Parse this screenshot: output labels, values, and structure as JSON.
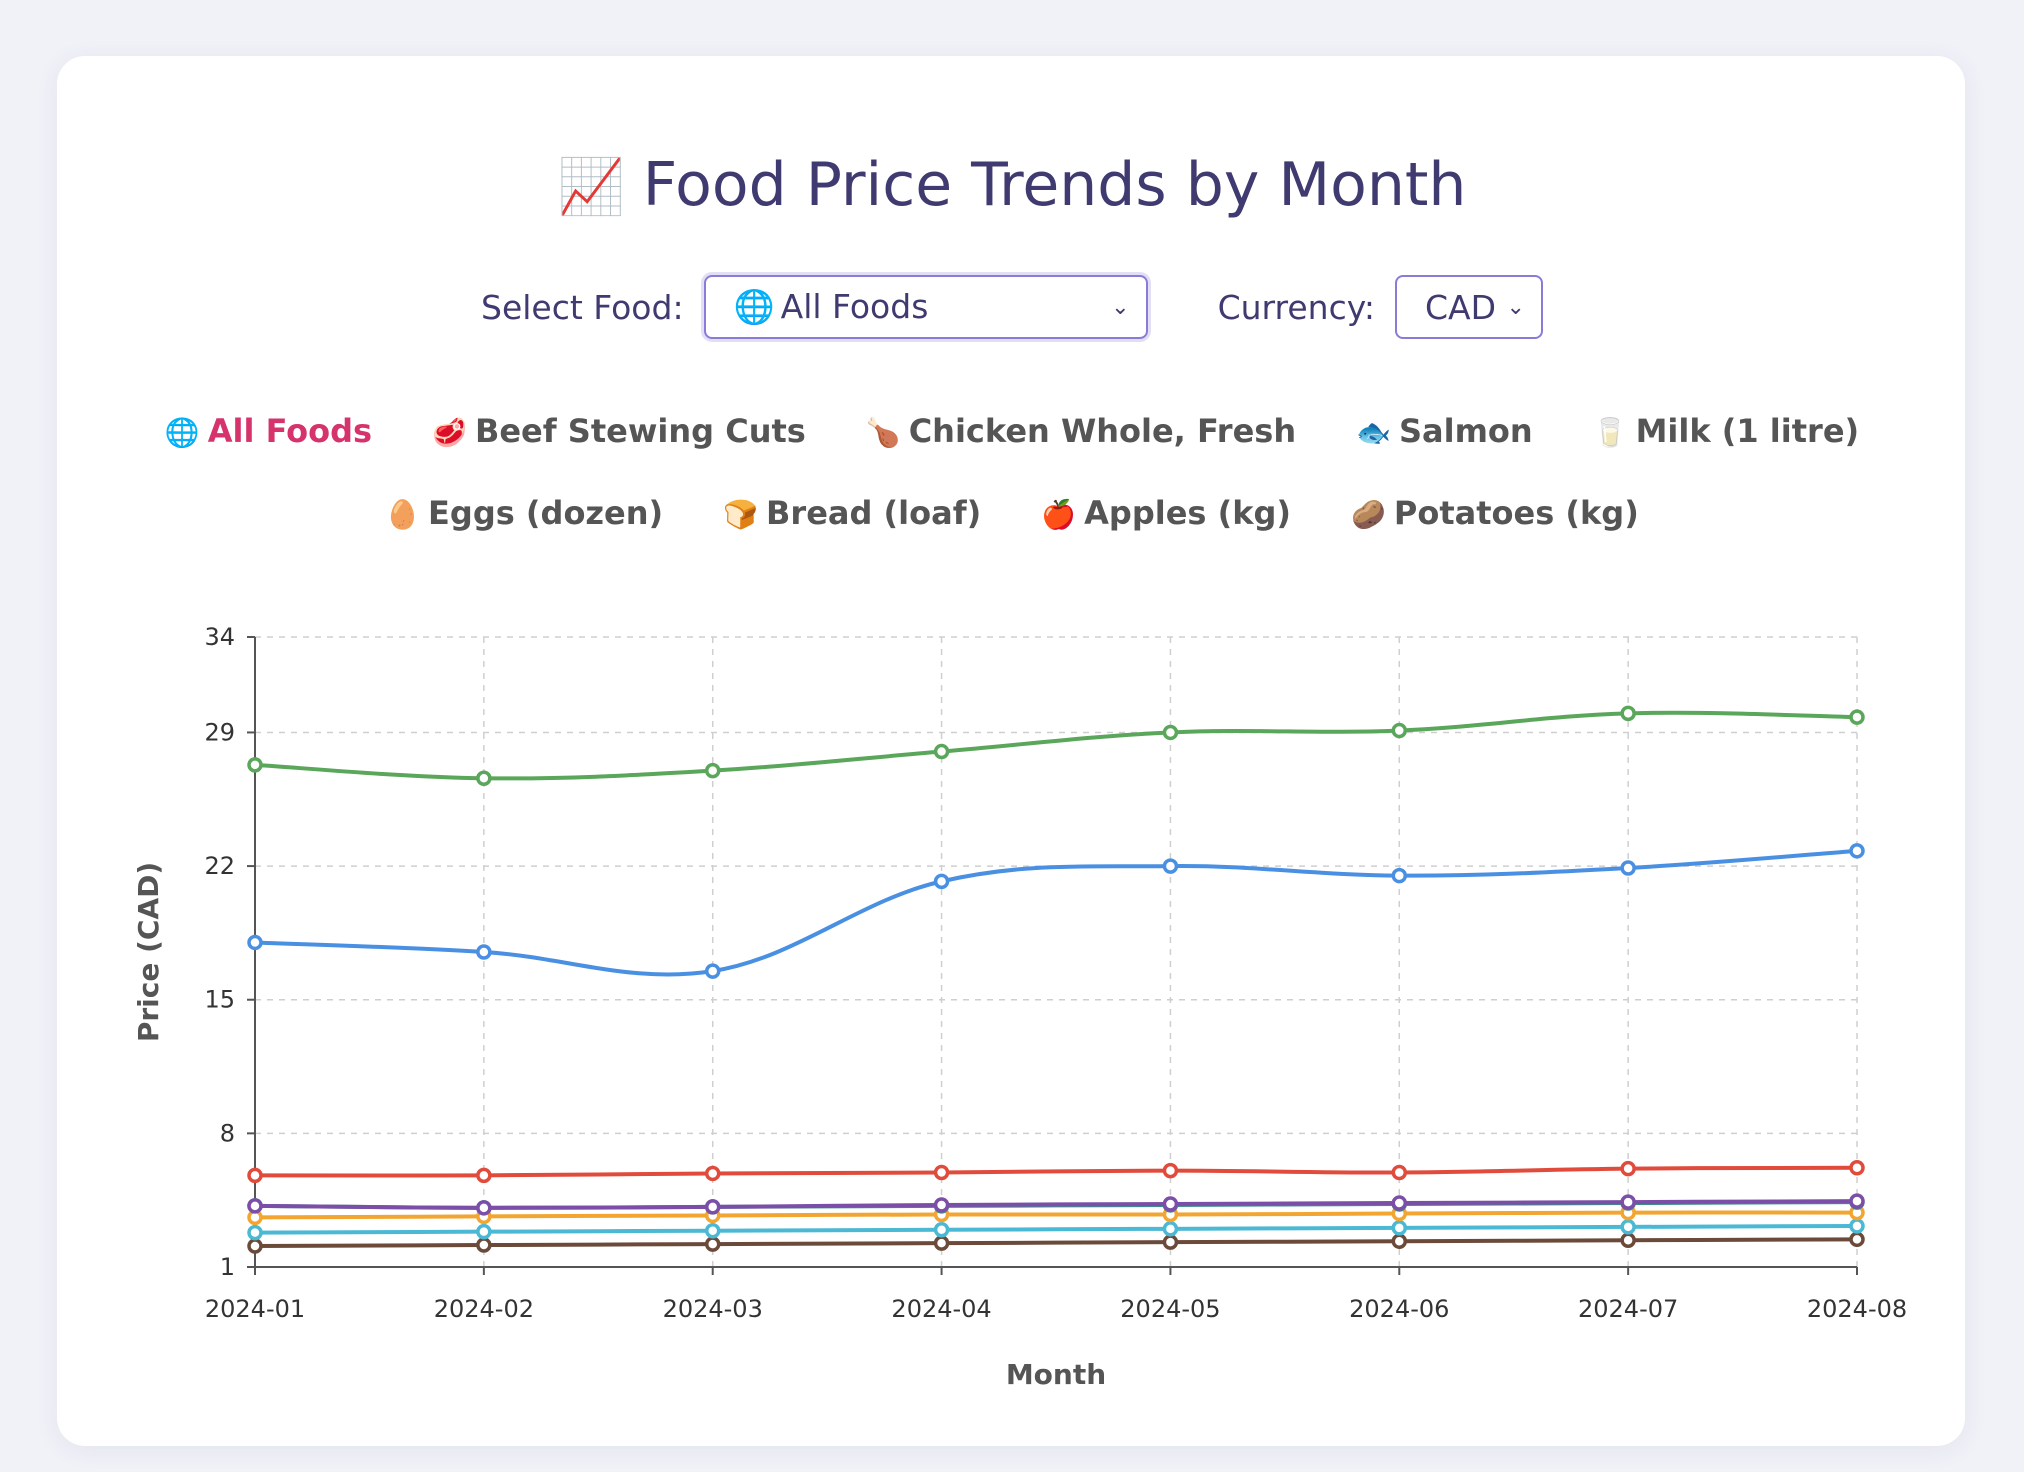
{
  "title": "Food Price Trends by Month",
  "title_icon": "chart-increasing-icon",
  "controls": {
    "food_label": "Select Food:",
    "food_value": "All Foods",
    "currency_label": "Currency:",
    "currency_value": "CAD"
  },
  "legend": [
    {
      "label": "All Foods",
      "icon": "globe-icon",
      "glyph": "🌐",
      "active": true
    },
    {
      "label": "Beef Stewing Cuts",
      "icon": "meat-icon",
      "glyph": "🥩"
    },
    {
      "label": "Chicken Whole, Fresh",
      "icon": "drumstick-icon",
      "glyph": "🍗"
    },
    {
      "label": "Salmon",
      "icon": "fish-icon",
      "glyph": "🐟"
    },
    {
      "label": "Milk (1 litre)",
      "icon": "milk-glass-icon",
      "glyph": "🥛"
    },
    {
      "label": "Eggs (dozen)",
      "icon": "egg-icon",
      "glyph": "🥚"
    },
    {
      "label": "Bread (loaf)",
      "icon": "bread-icon",
      "glyph": "🍞"
    },
    {
      "label": "Apples (kg)",
      "icon": "apple-icon",
      "glyph": "🍎"
    },
    {
      "label": "Potatoes (kg)",
      "icon": "potato-icon",
      "glyph": "🥔"
    }
  ],
  "chart_data": {
    "type": "line",
    "xlabel": "Month",
    "ylabel": "Price (CAD)",
    "x": [
      "2024-01",
      "2024-02",
      "2024-03",
      "2024-04",
      "2024-05",
      "2024-06",
      "2024-07",
      "2024-08"
    ],
    "ylim": [
      1,
      34
    ],
    "yticks": [
      1,
      8,
      15,
      22,
      29,
      34
    ],
    "grid": true,
    "series": [
      {
        "color": "#5aa65a",
        "values": [
          27.3,
          26.6,
          27.0,
          28.0,
          29.0,
          29.1,
          30.0,
          29.8
        ]
      },
      {
        "color": "#4a90e2",
        "values": [
          18.0,
          17.5,
          16.5,
          21.2,
          22.0,
          21.5,
          21.9,
          22.8
        ]
      },
      {
        "color": "#e04b3c",
        "values": [
          5.8,
          5.8,
          5.9,
          5.95,
          6.05,
          5.95,
          6.15,
          6.2
        ]
      },
      {
        "color": "#7b4fa8",
        "values": [
          4.2,
          4.1,
          4.15,
          4.25,
          4.3,
          4.35,
          4.4,
          4.45
        ]
      },
      {
        "color": "#3d8f8a",
        "values": [
          4.2,
          4.1,
          4.15,
          4.2,
          4.25,
          4.3,
          4.35,
          4.4
        ]
      },
      {
        "color": "#f2a531",
        "values": [
          3.6,
          3.65,
          3.7,
          3.75,
          3.75,
          3.8,
          3.85,
          3.85
        ]
      },
      {
        "color": "#4bb8d4",
        "values": [
          2.8,
          2.85,
          2.9,
          2.95,
          3.0,
          3.05,
          3.1,
          3.15
        ]
      },
      {
        "color": "#6b4a3a",
        "values": [
          2.1,
          2.15,
          2.2,
          2.25,
          2.3,
          2.35,
          2.4,
          2.45
        ]
      }
    ]
  }
}
